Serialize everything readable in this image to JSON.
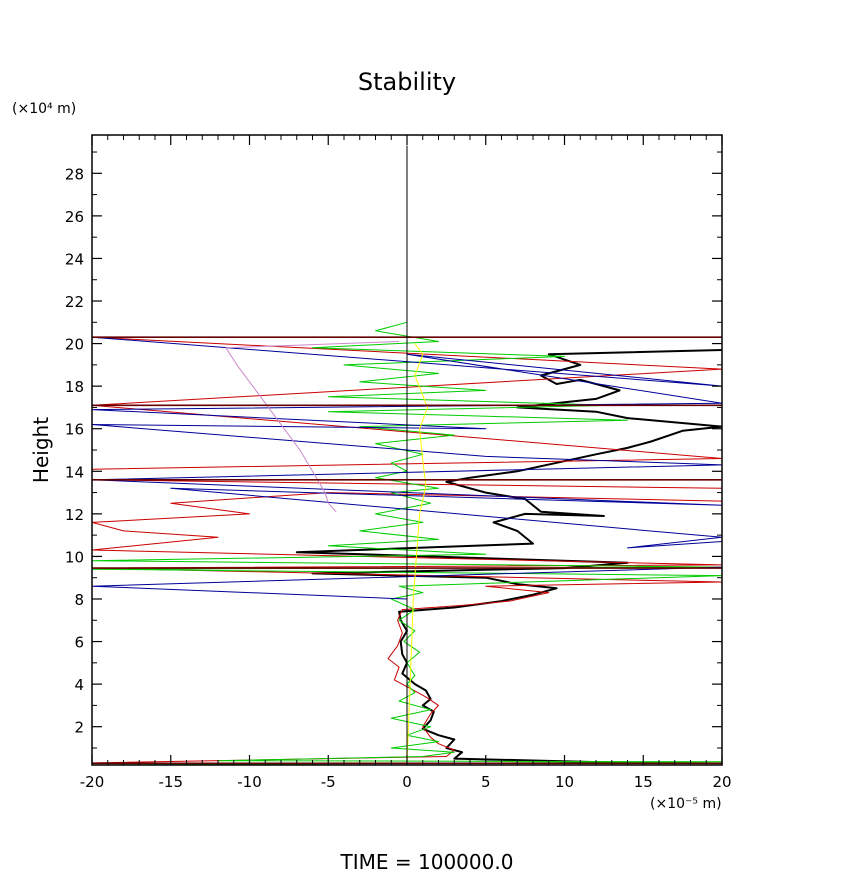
{
  "chart_data": {
    "type": "line",
    "title": "Stability",
    "ylabel": "Height",
    "y_unit": "(×10⁴ m)",
    "x_unit": "(×10⁻⁵ m)",
    "footer": "TIME  =  100000.0",
    "xlim": [
      -20,
      20
    ],
    "ylim": [
      0.2,
      29.8
    ],
    "x_ticks": [
      -20,
      -15,
      -10,
      -5,
      0,
      5,
      10,
      15,
      20
    ],
    "x_tick_labels": [
      "-20",
      "-15",
      "-10",
      "-5",
      "0",
      "5",
      "10",
      "15",
      "20"
    ],
    "y_ticks": [
      2,
      4,
      6,
      8,
      10,
      12,
      14,
      16,
      18,
      20,
      22,
      24,
      26,
      28
    ],
    "y_tick_labels": [
      "2",
      "4",
      "6",
      "8",
      "10",
      "12",
      "14",
      "16",
      "18",
      "20",
      "22",
      "24",
      "26",
      "28"
    ],
    "grid": false,
    "series": [
      {
        "color": "#000000",
        "width": 2,
        "points": [
          [
            14,
            0.3
          ],
          [
            3,
            0.5
          ],
          [
            3.5,
            0.8
          ],
          [
            2.5,
            1
          ],
          [
            3,
            1.4
          ],
          [
            2,
            1.6
          ],
          [
            1,
            1.9
          ],
          [
            1.5,
            2.3
          ],
          [
            1.7,
            2.7
          ],
          [
            1,
            3
          ],
          [
            1.5,
            3.3
          ],
          [
            1.2,
            3.7
          ],
          [
            0.5,
            4
          ],
          [
            -0.3,
            4.5
          ],
          [
            0,
            5
          ],
          [
            -0.3,
            5.4
          ],
          [
            -0.4,
            6
          ],
          [
            0,
            6.5
          ],
          [
            -0.4,
            7
          ],
          [
            -0.5,
            7.4
          ],
          [
            3,
            7.6
          ],
          [
            6,
            7.9
          ],
          [
            8,
            8.2
          ],
          [
            9.5,
            8.5
          ],
          [
            7,
            8.7
          ],
          [
            5,
            9
          ],
          [
            -6,
            9.2
          ],
          [
            10,
            9.45
          ],
          [
            14,
            9.7
          ],
          [
            -7,
            10.2
          ],
          [
            8,
            10.6
          ],
          [
            7,
            11.2
          ],
          [
            5.5,
            11.6
          ],
          [
            7.5,
            12
          ],
          [
            12.5,
            11.9
          ],
          [
            8.5,
            12.1
          ],
          [
            7.5,
            12.7
          ],
          [
            5,
            13
          ],
          [
            2.5,
            13.5
          ],
          [
            4,
            13.7
          ],
          [
            7,
            14
          ],
          [
            9.5,
            14.4
          ],
          [
            12,
            14.8
          ],
          [
            14,
            15.1
          ],
          [
            15.5,
            15.4
          ],
          [
            17.5,
            15.9
          ],
          [
            20,
            16.1
          ],
          [
            14,
            16.5
          ],
          [
            12,
            16.8
          ],
          [
            7,
            17
          ],
          [
            12,
            17.4
          ],
          [
            13.5,
            17.8
          ],
          [
            11,
            18.3
          ],
          [
            9.5,
            18.1
          ],
          [
            8.5,
            18.5
          ],
          [
            11,
            19
          ],
          [
            9,
            19.5
          ],
          [
            20,
            19.7
          ]
        ]
      },
      {
        "color": "#cc0000",
        "width": 1,
        "points": [
          [
            -20,
            0.3
          ],
          [
            2.5,
            0.6
          ],
          [
            3,
            0.9
          ],
          [
            2,
            1.2
          ],
          [
            1.5,
            1.5
          ],
          [
            1,
            2
          ],
          [
            1.5,
            2.6
          ],
          [
            2,
            3
          ],
          [
            1.2,
            3.4
          ],
          [
            0.2,
            3.8
          ],
          [
            -0.8,
            4.2
          ],
          [
            -0.5,
            4.8
          ],
          [
            -1.2,
            5.2
          ],
          [
            -0.6,
            5.8
          ],
          [
            -0.3,
            6.4
          ],
          [
            -0.6,
            7
          ],
          [
            -0.3,
            7.5
          ],
          [
            3.5,
            7.7
          ],
          [
            6.5,
            7.9
          ],
          [
            9,
            8.3
          ],
          [
            5,
            8.6
          ],
          [
            20,
            8.8
          ],
          [
            -20,
            9.45
          ],
          [
            20,
            9.6
          ],
          [
            -20,
            10.3
          ],
          [
            -12,
            10.9
          ],
          [
            -18,
            11.2
          ],
          [
            -20,
            11.6
          ],
          [
            -10,
            12
          ],
          [
            -15,
            12.5
          ],
          [
            -5,
            13
          ],
          [
            20,
            12.6
          ],
          [
            20,
            13.2
          ],
          [
            -20,
            13.6
          ],
          [
            -20,
            14.1
          ],
          [
            20,
            14.6
          ],
          [
            -20,
            17.1
          ],
          [
            20,
            18.8
          ],
          [
            -20,
            20.3
          ],
          [
            20,
            20.3
          ]
        ]
      },
      {
        "color": "#00cc00",
        "width": 1,
        "points": [
          [
            -20,
            0.2
          ],
          [
            20,
            0.35
          ],
          [
            -12,
            0.4
          ],
          [
            1,
            0.6
          ],
          [
            3,
            0.8
          ],
          [
            -1,
            1
          ],
          [
            2,
            1.3
          ],
          [
            0,
            1.6
          ],
          [
            1.5,
            2
          ],
          [
            -1,
            2.4
          ],
          [
            1.5,
            2.8
          ],
          [
            -0.5,
            3.2
          ],
          [
            0.5,
            3.6
          ],
          [
            0,
            4
          ],
          [
            0.5,
            4.4
          ],
          [
            0,
            5
          ],
          [
            0.8,
            5.5
          ],
          [
            -0.2,
            6
          ],
          [
            0.5,
            6.5
          ],
          [
            -0.5,
            7
          ],
          [
            0.5,
            7.5
          ],
          [
            -1,
            8
          ],
          [
            1,
            8.3
          ],
          [
            -0.5,
            8.6
          ],
          [
            20,
            9.1
          ],
          [
            -20,
            9.4
          ],
          [
            20,
            9.5
          ],
          [
            -20,
            9.8
          ],
          [
            5,
            10.1
          ],
          [
            -5,
            10.5
          ],
          [
            2,
            10.8
          ],
          [
            -3,
            11.2
          ],
          [
            1,
            11.6
          ],
          [
            -2,
            12
          ],
          [
            1.5,
            12.5
          ],
          [
            -1,
            13
          ],
          [
            2,
            13.2
          ],
          [
            -2,
            13.7
          ],
          [
            0,
            14
          ],
          [
            -1,
            14.4
          ],
          [
            1,
            14.8
          ],
          [
            -2,
            15.3
          ],
          [
            3,
            15.7
          ],
          [
            -3,
            16.1
          ],
          [
            14,
            16.4
          ],
          [
            -5,
            16.8
          ],
          [
            13,
            17.1
          ],
          [
            -5,
            17.5
          ],
          [
            5,
            17.8
          ],
          [
            -3,
            18.2
          ],
          [
            2,
            18.6
          ],
          [
            -4,
            19
          ],
          [
            10,
            19.4
          ],
          [
            -6,
            19.8
          ],
          [
            2,
            20.1
          ],
          [
            -2,
            20.6
          ],
          [
            0,
            21
          ]
        ]
      },
      {
        "color": "#000099",
        "width": 1,
        "points": [
          [
            0,
            0.3
          ],
          [
            0,
            3
          ],
          [
            0,
            6
          ],
          [
            0,
            8
          ],
          [
            -20,
            8.6
          ],
          [
            20,
            9.5
          ],
          [
            20,
            10.7
          ],
          [
            14,
            10.4
          ],
          [
            20,
            10.9
          ],
          [
            -15,
            13.2
          ],
          [
            20,
            12.4
          ],
          [
            -20,
            13.6
          ],
          [
            20,
            14.3
          ],
          [
            5,
            14.7
          ],
          [
            -20,
            16.2
          ],
          [
            5,
            16
          ],
          [
            -20,
            16.9
          ],
          [
            20,
            17.2
          ],
          [
            0,
            19.5
          ],
          [
            20,
            18
          ],
          [
            -20,
            20.3
          ]
        ]
      },
      {
        "color": "#ffff00",
        "width": 1,
        "points": [
          [
            0,
            0.3
          ],
          [
            0.2,
            4
          ],
          [
            0.4,
            8
          ],
          [
            0.6,
            10
          ],
          [
            0.8,
            12
          ],
          [
            1.2,
            13.3
          ],
          [
            1,
            14.5
          ],
          [
            0.8,
            16
          ],
          [
            1.3,
            17
          ],
          [
            0.5,
            18.5
          ],
          [
            1,
            19.5
          ],
          [
            0.5,
            20
          ]
        ]
      },
      {
        "color": "#cc88cc",
        "width": 1,
        "points": [
          [
            -4.5,
            12.1
          ],
          [
            -5,
            12.5
          ],
          [
            -5.2,
            13
          ],
          [
            -5.6,
            13.5
          ],
          [
            -6,
            14
          ],
          [
            -6.8,
            15
          ],
          [
            -7.8,
            16
          ],
          [
            -8.8,
            17
          ],
          [
            -9.8,
            18
          ],
          [
            -10.8,
            19
          ],
          [
            -11.5,
            19.8
          ],
          [
            -0.5,
            20.1
          ]
        ]
      },
      {
        "color": "#660000",
        "width": 1.6,
        "points": [
          [
            -20,
            0.28
          ],
          [
            20,
            0.28
          ]
        ]
      },
      {
        "color": "#660000",
        "width": 1.6,
        "points": [
          [
            -20,
            9.45
          ],
          [
            20,
            9.45
          ]
        ]
      },
      {
        "color": "#660000",
        "width": 1.6,
        "points": [
          [
            -20,
            13.6
          ],
          [
            20,
            13.6
          ]
        ]
      },
      {
        "color": "#660000",
        "width": 1.6,
        "points": [
          [
            -20,
            17.1
          ],
          [
            20,
            17.1
          ]
        ]
      },
      {
        "color": "#660000",
        "width": 1.6,
        "points": [
          [
            -20,
            20.3
          ],
          [
            20,
            20.3
          ]
        ]
      },
      {
        "color": "#000000",
        "width": 1,
        "points": [
          [
            0,
            0.2
          ],
          [
            0,
            29.3
          ]
        ]
      }
    ]
  }
}
